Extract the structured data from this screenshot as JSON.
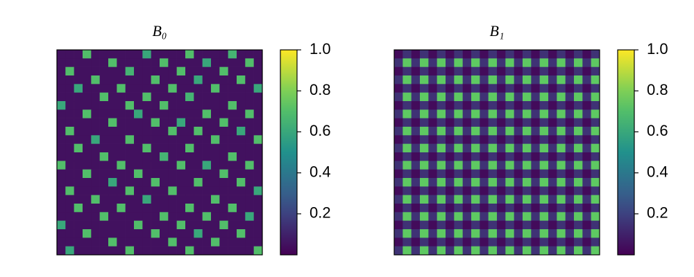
{
  "chart_data": [
    {
      "type": "heatmap",
      "title": "B₀",
      "colormap": "viridis",
      "zlim": [
        0,
        1
      ],
      "zticks": [
        0.2,
        0.4,
        0.6,
        0.8,
        {
          "value": 1,
          "label": "1.0"
        }
      ],
      "values": [
        [
          0.05,
          0.05,
          0.05,
          0.7,
          0.05,
          0.05,
          0.05,
          0.05,
          0.05,
          0.05,
          0.6,
          0.05,
          0.05,
          0.05,
          0.05,
          0.7,
          0.05,
          0.05,
          0.05,
          0.05,
          0.65,
          0.05,
          0.05,
          0.05
        ],
        [
          0.05,
          0.05,
          0.05,
          0.05,
          0.05,
          0.05,
          0.7,
          0.05,
          0.05,
          0.05,
          0.05,
          0.05,
          0.7,
          0.05,
          0.05,
          0.05,
          0.05,
          0.6,
          0.05,
          0.05,
          0.05,
          0.05,
          0.7,
          0.05
        ],
        [
          0.05,
          0.7,
          0.05,
          0.05,
          0.05,
          0.05,
          0.05,
          0.05,
          0.65,
          0.05,
          0.05,
          0.05,
          0.05,
          0.05,
          0.7,
          0.05,
          0.05,
          0.05,
          0.05,
          0.7,
          0.05,
          0.05,
          0.05,
          0.05
        ],
        [
          0.05,
          0.05,
          0.05,
          0.05,
          0.7,
          0.05,
          0.05,
          0.05,
          0.05,
          0.05,
          0.05,
          0.7,
          0.05,
          0.05,
          0.05,
          0.05,
          0.6,
          0.05,
          0.05,
          0.05,
          0.05,
          0.7,
          0.05,
          0.05
        ],
        [
          0.05,
          0.05,
          0.6,
          0.05,
          0.05,
          0.05,
          0.05,
          0.7,
          0.05,
          0.05,
          0.05,
          0.05,
          0.05,
          0.7,
          0.05,
          0.05,
          0.05,
          0.05,
          0.7,
          0.05,
          0.05,
          0.05,
          0.05,
          0.6
        ],
        [
          0.05,
          0.05,
          0.05,
          0.05,
          0.05,
          0.7,
          0.05,
          0.05,
          0.05,
          0.05,
          0.7,
          0.05,
          0.05,
          0.05,
          0.05,
          0.65,
          0.05,
          0.05,
          0.05,
          0.05,
          0.05,
          0.05,
          0.05,
          0.05
        ],
        [
          0.6,
          0.05,
          0.05,
          0.05,
          0.05,
          0.05,
          0.05,
          0.05,
          0.7,
          0.05,
          0.05,
          0.05,
          0.7,
          0.05,
          0.05,
          0.05,
          0.05,
          0.05,
          0.05,
          0.05,
          0.7,
          0.05,
          0.05,
          0.05
        ],
        [
          0.05,
          0.05,
          0.05,
          0.7,
          0.05,
          0.05,
          0.05,
          0.05,
          0.05,
          0.6,
          0.05,
          0.05,
          0.05,
          0.05,
          0.05,
          0.05,
          0.05,
          0.7,
          0.05,
          0.05,
          0.05,
          0.05,
          0.7,
          0.05
        ],
        [
          0.05,
          0.05,
          0.05,
          0.05,
          0.05,
          0.05,
          0.7,
          0.05,
          0.05,
          0.05,
          0.05,
          0.7,
          0.05,
          0.05,
          0.6,
          0.05,
          0.05,
          0.05,
          0.05,
          0.7,
          0.05,
          0.05,
          0.05,
          0.05
        ],
        [
          0.05,
          0.7,
          0.05,
          0.05,
          0.05,
          0.05,
          0.05,
          0.05,
          0.05,
          0.05,
          0.05,
          0.05,
          0.05,
          0.7,
          0.05,
          0.05,
          0.7,
          0.05,
          0.05,
          0.05,
          0.05,
          0.6,
          0.05,
          0.05
        ],
        [
          0.05,
          0.05,
          0.05,
          0.05,
          0.6,
          0.05,
          0.05,
          0.05,
          0.7,
          0.05,
          0.05,
          0.05,
          0.05,
          0.05,
          0.05,
          0.05,
          0.05,
          0.05,
          0.7,
          0.05,
          0.05,
          0.05,
          0.05,
          0.7
        ],
        [
          0.05,
          0.05,
          0.7,
          0.05,
          0.05,
          0.05,
          0.05,
          0.05,
          0.05,
          0.05,
          0.7,
          0.05,
          0.05,
          0.05,
          0.05,
          0.7,
          0.05,
          0.05,
          0.05,
          0.05,
          0.05,
          0.05,
          0.05,
          0.05
        ],
        [
          0.05,
          0.05,
          0.05,
          0.05,
          0.05,
          0.7,
          0.05,
          0.05,
          0.05,
          0.05,
          0.05,
          0.05,
          0.65,
          0.05,
          0.05,
          0.05,
          0.05,
          0.05,
          0.05,
          0.05,
          0.7,
          0.05,
          0.05,
          0.05
        ],
        [
          0.7,
          0.05,
          0.05,
          0.05,
          0.05,
          0.05,
          0.05,
          0.7,
          0.05,
          0.05,
          0.05,
          0.05,
          0.05,
          0.05,
          0.7,
          0.05,
          0.05,
          0.6,
          0.05,
          0.05,
          0.05,
          0.05,
          0.7,
          0.05
        ],
        [
          0.05,
          0.05,
          0.05,
          0.7,
          0.05,
          0.05,
          0.05,
          0.05,
          0.05,
          0.7,
          0.05,
          0.05,
          0.05,
          0.05,
          0.05,
          0.05,
          0.05,
          0.05,
          0.05,
          0.7,
          0.05,
          0.05,
          0.05,
          0.05
        ],
        [
          0.05,
          0.05,
          0.05,
          0.05,
          0.05,
          0.05,
          0.6,
          0.05,
          0.05,
          0.05,
          0.05,
          0.7,
          0.05,
          0.05,
          0.05,
          0.05,
          0.7,
          0.05,
          0.05,
          0.05,
          0.05,
          0.7,
          0.05,
          0.05
        ],
        [
          0.05,
          0.7,
          0.05,
          0.05,
          0.05,
          0.05,
          0.05,
          0.05,
          0.7,
          0.05,
          0.05,
          0.05,
          0.05,
          0.7,
          0.05,
          0.05,
          0.05,
          0.05,
          0.05,
          0.05,
          0.05,
          0.05,
          0.05,
          0.6
        ],
        [
          0.05,
          0.05,
          0.05,
          0.05,
          0.7,
          0.05,
          0.05,
          0.05,
          0.05,
          0.05,
          0.6,
          0.05,
          0.05,
          0.05,
          0.05,
          0.05,
          0.05,
          0.05,
          0.7,
          0.05,
          0.05,
          0.05,
          0.05,
          0.05
        ],
        [
          0.05,
          0.05,
          0.7,
          0.05,
          0.05,
          0.05,
          0.05,
          0.7,
          0.05,
          0.05,
          0.05,
          0.05,
          0.05,
          0.05,
          0.05,
          0.7,
          0.05,
          0.05,
          0.05,
          0.05,
          0.7,
          0.05,
          0.05,
          0.05
        ],
        [
          0.05,
          0.05,
          0.05,
          0.05,
          0.05,
          0.7,
          0.05,
          0.05,
          0.05,
          0.05,
          0.05,
          0.05,
          0.7,
          0.05,
          0.05,
          0.05,
          0.05,
          0.7,
          0.05,
          0.05,
          0.05,
          0.05,
          0.6,
          0.05
        ],
        [
          0.6,
          0.05,
          0.05,
          0.05,
          0.05,
          0.05,
          0.05,
          0.05,
          0.05,
          0.7,
          0.05,
          0.05,
          0.05,
          0.05,
          0.7,
          0.05,
          0.05,
          0.05,
          0.05,
          0.7,
          0.05,
          0.05,
          0.05,
          0.05
        ],
        [
          0.05,
          0.05,
          0.05,
          0.7,
          0.05,
          0.05,
          0.05,
          0.05,
          0.05,
          0.05,
          0.05,
          0.7,
          0.05,
          0.05,
          0.05,
          0.05,
          0.6,
          0.05,
          0.05,
          0.05,
          0.05,
          0.7,
          0.05,
          0.05
        ],
        [
          0.05,
          0.05,
          0.05,
          0.05,
          0.05,
          0.05,
          0.7,
          0.05,
          0.05,
          0.05,
          0.05,
          0.05,
          0.05,
          0.7,
          0.05,
          0.05,
          0.05,
          0.05,
          0.7,
          0.05,
          0.05,
          0.05,
          0.05,
          0.05
        ],
        [
          0.05,
          0.6,
          0.05,
          0.05,
          0.05,
          0.05,
          0.05,
          0.05,
          0.7,
          0.05,
          0.05,
          0.05,
          0.05,
          0.05,
          0.05,
          0.7,
          0.05,
          0.05,
          0.05,
          0.05,
          0.05,
          0.05,
          0.05,
          0.7
        ]
      ]
    },
    {
      "type": "heatmap",
      "title": "B₁",
      "colormap": "viridis",
      "zlim": [
        0,
        1
      ],
      "zticks": [
        0.2,
        0.4,
        0.6,
        0.8,
        {
          "value": 1,
          "label": "1.0"
        }
      ],
      "values": [
        [
          0.03,
          0.15,
          0.03,
          0.15,
          0.03,
          0.15,
          0.03,
          0.15,
          0.03,
          0.15,
          0.03,
          0.15,
          0.03,
          0.15,
          0.03,
          0.15,
          0.03,
          0.15,
          0.03,
          0.15,
          0.03,
          0.15,
          0.03,
          0.15
        ],
        [
          0.15,
          0.75,
          0.15,
          0.75,
          0.15,
          0.75,
          0.15,
          0.75,
          0.15,
          0.75,
          0.15,
          0.75,
          0.15,
          0.75,
          0.15,
          0.75,
          0.15,
          0.75,
          0.15,
          0.75,
          0.15,
          0.75,
          0.15,
          0.75
        ],
        [
          0.03,
          0.15,
          0.03,
          0.15,
          0.03,
          0.15,
          0.03,
          0.15,
          0.03,
          0.15,
          0.03,
          0.15,
          0.03,
          0.15,
          0.03,
          0.15,
          0.03,
          0.15,
          0.03,
          0.15,
          0.03,
          0.15,
          0.03,
          0.15
        ],
        [
          0.15,
          0.75,
          0.15,
          0.75,
          0.15,
          0.75,
          0.15,
          0.75,
          0.15,
          0.75,
          0.15,
          0.75,
          0.15,
          0.75,
          0.15,
          0.75,
          0.15,
          0.75,
          0.15,
          0.75,
          0.15,
          0.75,
          0.15,
          0.75
        ],
        [
          0.03,
          0.15,
          0.03,
          0.15,
          0.03,
          0.15,
          0.03,
          0.15,
          0.03,
          0.15,
          0.03,
          0.15,
          0.03,
          0.15,
          0.03,
          0.15,
          0.03,
          0.15,
          0.03,
          0.15,
          0.03,
          0.15,
          0.03,
          0.15
        ],
        [
          0.15,
          0.75,
          0.15,
          0.75,
          0.15,
          0.75,
          0.15,
          0.75,
          0.15,
          0.75,
          0.15,
          0.75,
          0.15,
          0.75,
          0.15,
          0.75,
          0.15,
          0.75,
          0.15,
          0.75,
          0.15,
          0.75,
          0.15,
          0.75
        ],
        [
          0.03,
          0.15,
          0.03,
          0.15,
          0.03,
          0.15,
          0.03,
          0.15,
          0.03,
          0.15,
          0.03,
          0.15,
          0.03,
          0.15,
          0.03,
          0.15,
          0.03,
          0.15,
          0.03,
          0.15,
          0.03,
          0.15,
          0.03,
          0.15
        ],
        [
          0.15,
          0.75,
          0.15,
          0.75,
          0.15,
          0.75,
          0.15,
          0.75,
          0.15,
          0.75,
          0.15,
          0.75,
          0.15,
          0.75,
          0.15,
          0.75,
          0.15,
          0.75,
          0.15,
          0.75,
          0.15,
          0.75,
          0.15,
          0.75
        ],
        [
          0.03,
          0.15,
          0.03,
          0.15,
          0.03,
          0.15,
          0.03,
          0.15,
          0.03,
          0.15,
          0.03,
          0.15,
          0.03,
          0.15,
          0.03,
          0.15,
          0.03,
          0.15,
          0.03,
          0.15,
          0.03,
          0.15,
          0.03,
          0.15
        ],
        [
          0.15,
          0.75,
          0.15,
          0.75,
          0.15,
          0.75,
          0.15,
          0.75,
          0.15,
          0.75,
          0.15,
          0.75,
          0.15,
          0.75,
          0.15,
          0.75,
          0.15,
          0.75,
          0.15,
          0.75,
          0.15,
          0.75,
          0.15,
          0.75
        ],
        [
          0.03,
          0.15,
          0.03,
          0.15,
          0.03,
          0.15,
          0.03,
          0.15,
          0.03,
          0.15,
          0.03,
          0.15,
          0.03,
          0.15,
          0.03,
          0.15,
          0.03,
          0.15,
          0.03,
          0.15,
          0.03,
          0.15,
          0.03,
          0.15
        ],
        [
          0.15,
          0.75,
          0.15,
          0.75,
          0.15,
          0.75,
          0.15,
          0.75,
          0.15,
          0.75,
          0.15,
          0.75,
          0.15,
          0.75,
          0.15,
          0.75,
          0.15,
          0.75,
          0.15,
          0.75,
          0.15,
          0.75,
          0.15,
          0.75
        ],
        [
          0.03,
          0.15,
          0.03,
          0.15,
          0.03,
          0.15,
          0.03,
          0.15,
          0.03,
          0.15,
          0.03,
          0.15,
          0.03,
          0.15,
          0.03,
          0.15,
          0.03,
          0.15,
          0.03,
          0.15,
          0.03,
          0.15,
          0.03,
          0.15
        ],
        [
          0.15,
          0.75,
          0.15,
          0.75,
          0.15,
          0.75,
          0.15,
          0.75,
          0.15,
          0.75,
          0.15,
          0.75,
          0.15,
          0.75,
          0.15,
          0.75,
          0.15,
          0.75,
          0.15,
          0.75,
          0.15,
          0.75,
          0.15,
          0.75
        ],
        [
          0.03,
          0.15,
          0.03,
          0.15,
          0.03,
          0.15,
          0.03,
          0.15,
          0.03,
          0.15,
          0.03,
          0.15,
          0.03,
          0.15,
          0.03,
          0.15,
          0.03,
          0.15,
          0.03,
          0.15,
          0.03,
          0.15,
          0.03,
          0.15
        ],
        [
          0.15,
          0.75,
          0.15,
          0.75,
          0.15,
          0.75,
          0.15,
          0.75,
          0.15,
          0.75,
          0.15,
          0.75,
          0.15,
          0.75,
          0.15,
          0.75,
          0.15,
          0.75,
          0.15,
          0.75,
          0.15,
          0.75,
          0.15,
          0.75
        ],
        [
          0.03,
          0.15,
          0.03,
          0.15,
          0.03,
          0.15,
          0.03,
          0.15,
          0.03,
          0.15,
          0.03,
          0.15,
          0.03,
          0.15,
          0.03,
          0.15,
          0.03,
          0.15,
          0.03,
          0.15,
          0.03,
          0.15,
          0.03,
          0.15
        ],
        [
          0.15,
          0.75,
          0.15,
          0.75,
          0.15,
          0.75,
          0.15,
          0.75,
          0.15,
          0.75,
          0.15,
          0.75,
          0.15,
          0.75,
          0.15,
          0.75,
          0.15,
          0.75,
          0.15,
          0.75,
          0.15,
          0.75,
          0.15,
          0.75
        ],
        [
          0.03,
          0.15,
          0.03,
          0.15,
          0.03,
          0.15,
          0.03,
          0.15,
          0.03,
          0.15,
          0.03,
          0.15,
          0.03,
          0.15,
          0.03,
          0.15,
          0.03,
          0.15,
          0.03,
          0.15,
          0.03,
          0.15,
          0.03,
          0.15
        ],
        [
          0.15,
          0.75,
          0.15,
          0.75,
          0.15,
          0.75,
          0.15,
          0.75,
          0.15,
          0.75,
          0.15,
          0.75,
          0.15,
          0.75,
          0.15,
          0.75,
          0.15,
          0.75,
          0.15,
          0.75,
          0.15,
          0.75,
          0.15,
          0.75
        ],
        [
          0.03,
          0.15,
          0.03,
          0.15,
          0.03,
          0.15,
          0.03,
          0.15,
          0.03,
          0.15,
          0.03,
          0.15,
          0.03,
          0.15,
          0.03,
          0.15,
          0.03,
          0.15,
          0.03,
          0.15,
          0.03,
          0.15,
          0.03,
          0.15
        ],
        [
          0.15,
          0.75,
          0.15,
          0.75,
          0.15,
          0.75,
          0.15,
          0.75,
          0.15,
          0.75,
          0.15,
          0.75,
          0.15,
          0.75,
          0.15,
          0.75,
          0.15,
          0.75,
          0.15,
          0.75,
          0.15,
          0.75,
          0.15,
          0.75
        ],
        [
          0.03,
          0.15,
          0.03,
          0.15,
          0.03,
          0.15,
          0.03,
          0.15,
          0.03,
          0.15,
          0.03,
          0.15,
          0.03,
          0.15,
          0.03,
          0.15,
          0.03,
          0.15,
          0.03,
          0.15,
          0.03,
          0.15,
          0.03,
          0.15
        ],
        [
          0.15,
          0.75,
          0.15,
          0.75,
          0.15,
          0.75,
          0.15,
          0.75,
          0.15,
          0.75,
          0.15,
          0.75,
          0.15,
          0.75,
          0.15,
          0.75,
          0.15,
          0.75,
          0.15,
          0.75,
          0.15,
          0.75,
          0.15,
          0.75
        ]
      ]
    }
  ]
}
